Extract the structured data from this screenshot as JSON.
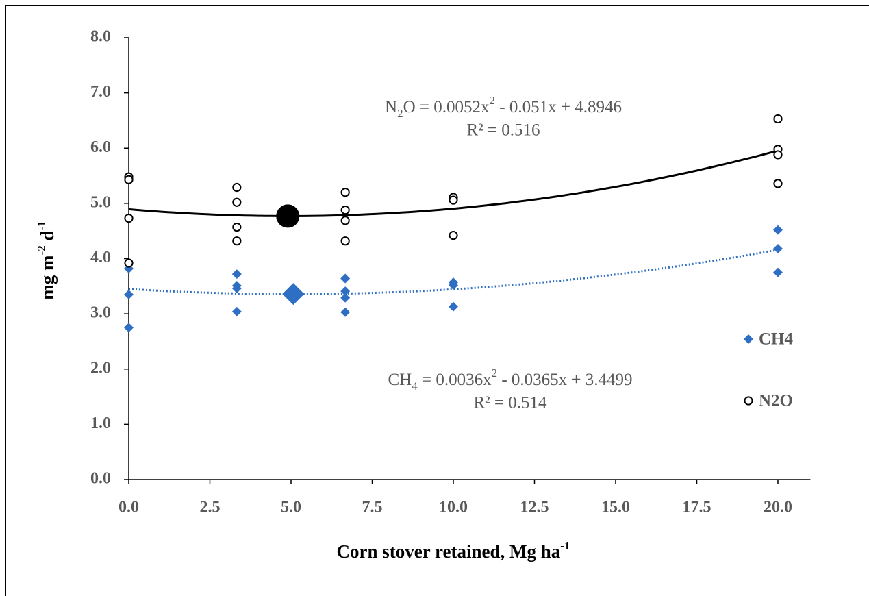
{
  "chart_data": {
    "type": "scatter",
    "xlabel": [
      "Corn stover retained, Mg ha",
      "-1"
    ],
    "ylabel": [
      "mg m",
      "-2",
      " d",
      "-1"
    ],
    "xlim": [
      0,
      21
    ],
    "ylim": [
      0,
      8
    ],
    "xticks": [
      {
        "value": 0,
        "label": "0.0"
      },
      2.5,
      {
        "value": 5,
        "label": "5.0"
      },
      7.5,
      {
        "value": 10,
        "label": "10.0"
      },
      12.5,
      {
        "value": 15,
        "label": "15.0"
      },
      17.5,
      {
        "value": 20,
        "label": "20.0"
      }
    ],
    "yticks": [
      {
        "value": 0,
        "label": "0.0"
      },
      {
        "value": 1,
        "label": "1.0"
      },
      {
        "value": 2,
        "label": "2.0"
      },
      {
        "value": 3,
        "label": "3.0"
      },
      {
        "value": 4,
        "label": "4.0"
      },
      {
        "value": 5,
        "label": "5.0"
      },
      {
        "value": 6,
        "label": "6.0"
      },
      {
        "value": 7,
        "label": "7.0"
      },
      {
        "value": 8,
        "label": "8.0"
      }
    ],
    "legend": "right",
    "series": [
      {
        "name": "CH4",
        "color": "#2e6fc4",
        "marker": "diamond",
        "x": [
          0,
          0,
          0,
          3.33,
          3.33,
          3.33,
          3.33,
          6.67,
          6.67,
          6.67,
          6.67,
          10,
          10,
          10,
          20,
          20,
          20
        ],
        "values": [
          3.82,
          3.35,
          2.75,
          3.72,
          3.51,
          3.46,
          3.04,
          3.64,
          3.41,
          3.29,
          3.03,
          3.57,
          3.52,
          3.13,
          4.52,
          4.18,
          3.75
        ],
        "trend": [
          0.0036,
          -0.0365,
          3.4499
        ],
        "trend_style": "dotted",
        "highlight": {
          "x": 5.07,
          "y": 3.36
        },
        "equation": [
          "CH",
          "4",
          " = 0.0036x",
          "2",
          " - 0.0365x + 3.4499"
        ],
        "r2": "R² = 0.514"
      },
      {
        "name": "N2O",
        "color": "#000000",
        "marker": "circle",
        "x": [
          0,
          0,
          0,
          0,
          3.33,
          3.33,
          3.33,
          3.33,
          6.67,
          6.67,
          6.67,
          6.67,
          10,
          10,
          10,
          20,
          20,
          20,
          20
        ],
        "values": [
          5.48,
          5.43,
          4.73,
          3.92,
          5.29,
          5.02,
          4.57,
          4.32,
          5.2,
          4.88,
          4.69,
          4.32,
          5.11,
          5.06,
          4.42,
          6.53,
          5.98,
          5.88,
          5.36
        ],
        "trend": [
          0.0052,
          -0.051,
          4.8946
        ],
        "trend_style": "solid",
        "highlight": {
          "x": 4.9,
          "y": 4.77
        },
        "equation": [
          "N",
          "2",
          "O = 0.0052x",
          "2",
          " - 0.051x + 4.8946"
        ],
        "r2": "R² = 0.516"
      }
    ]
  }
}
